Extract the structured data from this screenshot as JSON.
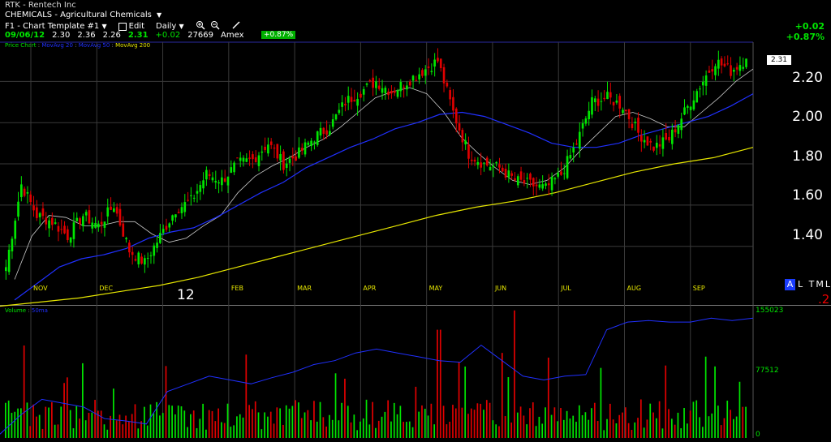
{
  "header": {
    "symbol_line": "RTK - Rentech Inc",
    "industry_line": "CHEMICALS - Agricultural Chemicals",
    "template_label": "F1 - Chart Template #1",
    "edit_label": "Edit",
    "period_label": "Daily",
    "zoom_in_icon": "magnifier-plus",
    "zoom_out_icon": "magnifier-minus",
    "draw_icon": "pencil",
    "dropdown_icon": "triangle-down"
  },
  "quote": {
    "date": "09/06/12",
    "open": "2.30",
    "high": "2.36",
    "low": "2.26",
    "close": "2.31",
    "change": "+0.02",
    "volume": "27669",
    "exchange": "Amex",
    "pct_badge": "+0.87%",
    "right_change": "+0.02",
    "right_pct": "+0.87%"
  },
  "legend": {
    "price_chart": "Price Chart",
    "ma_fast": "MovAvg 20",
    "ma_mid": "MovAvg 50",
    "ma_slow": "MovAvg 200",
    "volume_label": "Volume",
    "volume_avg": "50ma"
  },
  "markers": {
    "last_price": "2.31",
    "year_label": "12",
    "btn_a": "A",
    "btn_rest": "L TML",
    "red_suffix": ".2"
  },
  "colors": {
    "up": "#00e600",
    "down": "#e00000",
    "ma_fast": "#c8c8c8",
    "ma_mid": "#2030ff",
    "ma_slow": "#e6e600",
    "grid": "#3a3a3a",
    "frame": "#2a2aa0"
  },
  "chart_data": [
    {
      "type": "candlestick",
      "title": "RTK - Rentech Inc",
      "x_tick_labels": [
        "NOV",
        "DEC",
        "12",
        "FEB",
        "MAR",
        "APR",
        "MAY",
        "JUN",
        "JUL",
        "AUG",
        "SEP"
      ],
      "y_tick_labels": [
        "2.20",
        "2.00",
        "1.80",
        "1.60",
        "1.40"
      ],
      "ylim": [
        1.12,
        2.39
      ],
      "grid": true,
      "closes_weekly": [
        1.3,
        1.7,
        1.55,
        1.52,
        1.45,
        1.55,
        1.5,
        1.6,
        1.38,
        1.32,
        1.45,
        1.58,
        1.62,
        1.75,
        1.72,
        1.8,
        1.82,
        1.9,
        1.8,
        1.85,
        1.93,
        1.98,
        2.1,
        2.15,
        2.2,
        2.15,
        2.2,
        2.25,
        2.3,
        2.05,
        1.85,
        1.8,
        1.78,
        1.72,
        1.7,
        1.68,
        1.75,
        1.9,
        2.1,
        2.12,
        2.08,
        1.95,
        1.88,
        1.92,
        2.05,
        2.18,
        2.3,
        2.25,
        2.31
      ],
      "last": 2.31,
      "series": [
        {
          "name": "MovAvg 20",
          "values": [
            1.24,
            1.45,
            1.55,
            1.54,
            1.5,
            1.5,
            1.52,
            1.52,
            1.46,
            1.42,
            1.44,
            1.5,
            1.55,
            1.66,
            1.74,
            1.79,
            1.83,
            1.88,
            1.92,
            1.98,
            2.05,
            2.12,
            2.15,
            2.17,
            2.14,
            2.05,
            1.93,
            1.85,
            1.78,
            1.72,
            1.7,
            1.72,
            1.78,
            1.87,
            1.95,
            2.03,
            2.05,
            2.02,
            1.98,
            1.98,
            2.05,
            2.12,
            2.2,
            2.26
          ]
        },
        {
          "name": "MovAvg 50",
          "values": [
            1.14,
            1.22,
            1.3,
            1.34,
            1.36,
            1.39,
            1.44,
            1.47,
            1.49,
            1.54,
            1.6,
            1.66,
            1.71,
            1.78,
            1.83,
            1.88,
            1.92,
            1.97,
            2.0,
            2.04,
            2.05,
            2.03,
            1.99,
            1.95,
            1.9,
            1.88,
            1.88,
            1.9,
            1.94,
            1.97,
            2.0,
            2.03,
            2.08,
            2.14
          ]
        },
        {
          "name": "MovAvg 200",
          "values": [
            1.11,
            1.13,
            1.15,
            1.18,
            1.21,
            1.25,
            1.3,
            1.35,
            1.4,
            1.45,
            1.5,
            1.55,
            1.59,
            1.62,
            1.66,
            1.71,
            1.76,
            1.8,
            1.83,
            1.88
          ]
        }
      ]
    },
    {
      "type": "bar",
      "title": "Volume",
      "y_tick_labels": [
        "155023",
        "77512",
        "0"
      ],
      "ylim": [
        0,
        170000
      ],
      "series": [
        {
          "name": "Volume",
          "note": "daily bars colored by price direction"
        },
        {
          "name": "50ma",
          "values": [
            5000,
            30000,
            50000,
            45000,
            40000,
            25000,
            22000,
            18000,
            60000,
            70000,
            80000,
            75000,
            70000,
            78000,
            85000,
            95000,
            100000,
            110000,
            115000,
            110000,
            105000,
            100000,
            98000,
            120000,
            100000,
            80000,
            75000,
            80000,
            82000,
            140000,
            150000,
            152000,
            150000,
            150000,
            155000,
            152000,
            155000
          ]
        }
      ]
    }
  ]
}
